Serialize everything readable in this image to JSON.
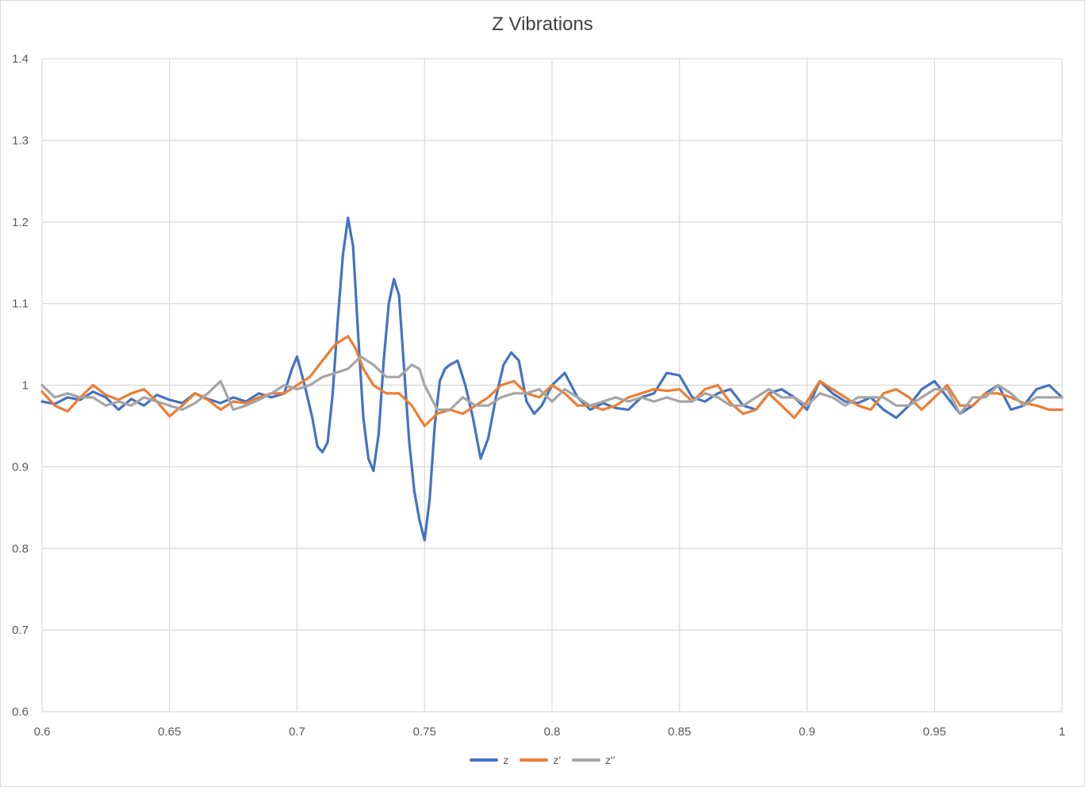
{
  "chart_data": {
    "type": "line",
    "title": "Z Vibrations",
    "xlabel": "",
    "ylabel": "",
    "xlim": [
      0.6,
      1.0
    ],
    "ylim": [
      0.6,
      1.4
    ],
    "x_ticks": [
      0.6,
      0.65,
      0.7,
      0.75,
      0.8,
      0.85,
      0.9,
      0.95,
      1.0
    ],
    "x_tick_labels": [
      "0.6",
      "0.65",
      "0.7",
      "0.75",
      "0.8",
      "0.85",
      "0.9",
      "0.95",
      "1"
    ],
    "y_ticks": [
      0.6,
      0.7,
      0.8,
      0.9,
      1.0,
      1.1,
      1.2,
      1.3,
      1.4
    ],
    "y_tick_labels": [
      "0.6",
      "0.7",
      "0.8",
      "0.9",
      "1",
      "1.1",
      "1.2",
      "1.3",
      "1.4"
    ],
    "grid": true,
    "legend_position": "bottom",
    "series": [
      {
        "name": "z",
        "color": "#4472c4",
        "x": [
          0.6,
          0.605,
          0.61,
          0.615,
          0.62,
          0.625,
          0.63,
          0.635,
          0.64,
          0.645,
          0.65,
          0.655,
          0.66,
          0.665,
          0.67,
          0.675,
          0.68,
          0.685,
          0.69,
          0.695,
          0.698,
          0.7,
          0.703,
          0.706,
          0.708,
          0.71,
          0.712,
          0.714,
          0.716,
          0.718,
          0.72,
          0.722,
          0.724,
          0.726,
          0.728,
          0.73,
          0.732,
          0.734,
          0.736,
          0.738,
          0.74,
          0.742,
          0.744,
          0.746,
          0.748,
          0.75,
          0.752,
          0.754,
          0.756,
          0.758,
          0.76,
          0.763,
          0.766,
          0.769,
          0.772,
          0.775,
          0.778,
          0.781,
          0.784,
          0.787,
          0.79,
          0.793,
          0.796,
          0.8,
          0.805,
          0.81,
          0.815,
          0.82,
          0.825,
          0.83,
          0.835,
          0.84,
          0.845,
          0.85,
          0.855,
          0.86,
          0.865,
          0.87,
          0.875,
          0.88,
          0.885,
          0.89,
          0.895,
          0.9,
          0.905,
          0.91,
          0.915,
          0.92,
          0.925,
          0.93,
          0.935,
          0.94,
          0.945,
          0.95,
          0.955,
          0.96,
          0.965,
          0.97,
          0.975,
          0.98,
          0.985,
          0.99,
          0.995,
          1.0
        ],
        "values": [
          0.98,
          0.977,
          0.985,
          0.982,
          0.992,
          0.985,
          0.97,
          0.983,
          0.975,
          0.988,
          0.982,
          0.978,
          0.99,
          0.983,
          0.978,
          0.985,
          0.98,
          0.99,
          0.985,
          0.99,
          1.02,
          1.035,
          1.0,
          0.96,
          0.925,
          0.918,
          0.93,
          0.99,
          1.08,
          1.16,
          1.205,
          1.17,
          1.06,
          0.96,
          0.91,
          0.895,
          0.94,
          1.03,
          1.1,
          1.13,
          1.11,
          1.02,
          0.93,
          0.87,
          0.835,
          0.81,
          0.86,
          0.95,
          1.005,
          1.02,
          1.025,
          1.03,
          1.0,
          0.96,
          0.91,
          0.935,
          0.985,
          1.025,
          1.04,
          1.03,
          0.98,
          0.965,
          0.975,
          1.0,
          1.015,
          0.985,
          0.97,
          0.978,
          0.972,
          0.97,
          0.985,
          0.99,
          1.015,
          1.012,
          0.985,
          0.98,
          0.99,
          0.995,
          0.975,
          0.97,
          0.99,
          0.995,
          0.985,
          0.97,
          1.005,
          0.99,
          0.98,
          0.978,
          0.985,
          0.97,
          0.96,
          0.975,
          0.995,
          1.005,
          0.985,
          0.965,
          0.975,
          0.99,
          1.0,
          0.97,
          0.975,
          0.995,
          1.0,
          0.985
        ]
      },
      {
        "name": "z'",
        "color": "#ed7d31",
        "x": [
          0.6,
          0.605,
          0.61,
          0.615,
          0.62,
          0.625,
          0.63,
          0.635,
          0.64,
          0.645,
          0.65,
          0.655,
          0.66,
          0.665,
          0.67,
          0.675,
          0.68,
          0.685,
          0.69,
          0.695,
          0.7,
          0.705,
          0.71,
          0.715,
          0.72,
          0.723,
          0.726,
          0.73,
          0.735,
          0.74,
          0.745,
          0.75,
          0.755,
          0.76,
          0.765,
          0.77,
          0.775,
          0.78,
          0.785,
          0.79,
          0.795,
          0.8,
          0.805,
          0.81,
          0.815,
          0.82,
          0.825,
          0.83,
          0.835,
          0.84,
          0.845,
          0.85,
          0.855,
          0.86,
          0.865,
          0.87,
          0.875,
          0.88,
          0.885,
          0.89,
          0.895,
          0.9,
          0.905,
          0.91,
          0.915,
          0.92,
          0.925,
          0.93,
          0.935,
          0.94,
          0.945,
          0.95,
          0.955,
          0.96,
          0.965,
          0.97,
          0.975,
          0.98,
          0.985,
          0.99,
          0.995,
          1.0
        ],
        "values": [
          0.992,
          0.975,
          0.968,
          0.985,
          1.0,
          0.988,
          0.982,
          0.99,
          0.995,
          0.98,
          0.962,
          0.975,
          0.99,
          0.982,
          0.97,
          0.98,
          0.978,
          0.985,
          0.99,
          0.99,
          1.0,
          1.01,
          1.03,
          1.05,
          1.06,
          1.045,
          1.02,
          1.0,
          0.99,
          0.99,
          0.975,
          0.95,
          0.965,
          0.97,
          0.965,
          0.975,
          0.985,
          1.0,
          1.005,
          0.99,
          0.985,
          1.0,
          0.99,
          0.975,
          0.975,
          0.97,
          0.975,
          0.985,
          0.99,
          0.995,
          0.993,
          0.995,
          0.98,
          0.995,
          1.0,
          0.978,
          0.965,
          0.97,
          0.99,
          0.975,
          0.96,
          0.98,
          1.005,
          0.995,
          0.985,
          0.975,
          0.97,
          0.99,
          0.995,
          0.985,
          0.97,
          0.985,
          1.0,
          0.975,
          0.975,
          0.99,
          0.99,
          0.985,
          0.978,
          0.975,
          0.97,
          0.97
        ]
      },
      {
        "name": "z''",
        "color": "#a5a5a5",
        "x": [
          0.6,
          0.605,
          0.61,
          0.615,
          0.62,
          0.625,
          0.63,
          0.635,
          0.64,
          0.645,
          0.65,
          0.655,
          0.66,
          0.665,
          0.67,
          0.675,
          0.68,
          0.685,
          0.69,
          0.695,
          0.7,
          0.705,
          0.71,
          0.715,
          0.72,
          0.725,
          0.73,
          0.735,
          0.74,
          0.745,
          0.748,
          0.75,
          0.755,
          0.76,
          0.765,
          0.77,
          0.775,
          0.78,
          0.785,
          0.79,
          0.795,
          0.8,
          0.805,
          0.81,
          0.815,
          0.82,
          0.825,
          0.83,
          0.835,
          0.84,
          0.845,
          0.85,
          0.855,
          0.86,
          0.865,
          0.87,
          0.875,
          0.88,
          0.885,
          0.89,
          0.895,
          0.9,
          0.905,
          0.91,
          0.915,
          0.92,
          0.925,
          0.93,
          0.935,
          0.94,
          0.945,
          0.95,
          0.955,
          0.96,
          0.965,
          0.97,
          0.975,
          0.98,
          0.985,
          0.99,
          0.995,
          1.0
        ],
        "values": [
          1.0,
          0.985,
          0.99,
          0.985,
          0.985,
          0.975,
          0.98,
          0.975,
          0.985,
          0.98,
          0.975,
          0.97,
          0.978,
          0.99,
          1.005,
          0.97,
          0.975,
          0.982,
          0.99,
          1.0,
          0.995,
          1.0,
          1.01,
          1.015,
          1.02,
          1.035,
          1.025,
          1.01,
          1.01,
          1.025,
          1.02,
          1.0,
          0.97,
          0.97,
          0.985,
          0.975,
          0.975,
          0.985,
          0.99,
          0.99,
          0.995,
          0.98,
          0.995,
          0.985,
          0.975,
          0.98,
          0.985,
          0.98,
          0.985,
          0.98,
          0.985,
          0.98,
          0.98,
          0.99,
          0.985,
          0.975,
          0.975,
          0.985,
          0.995,
          0.985,
          0.985,
          0.975,
          0.99,
          0.985,
          0.975,
          0.985,
          0.985,
          0.985,
          0.975,
          0.975,
          0.985,
          0.995,
          0.995,
          0.965,
          0.985,
          0.985,
          1.0,
          0.99,
          0.975,
          0.985,
          0.985,
          0.985
        ]
      }
    ]
  }
}
